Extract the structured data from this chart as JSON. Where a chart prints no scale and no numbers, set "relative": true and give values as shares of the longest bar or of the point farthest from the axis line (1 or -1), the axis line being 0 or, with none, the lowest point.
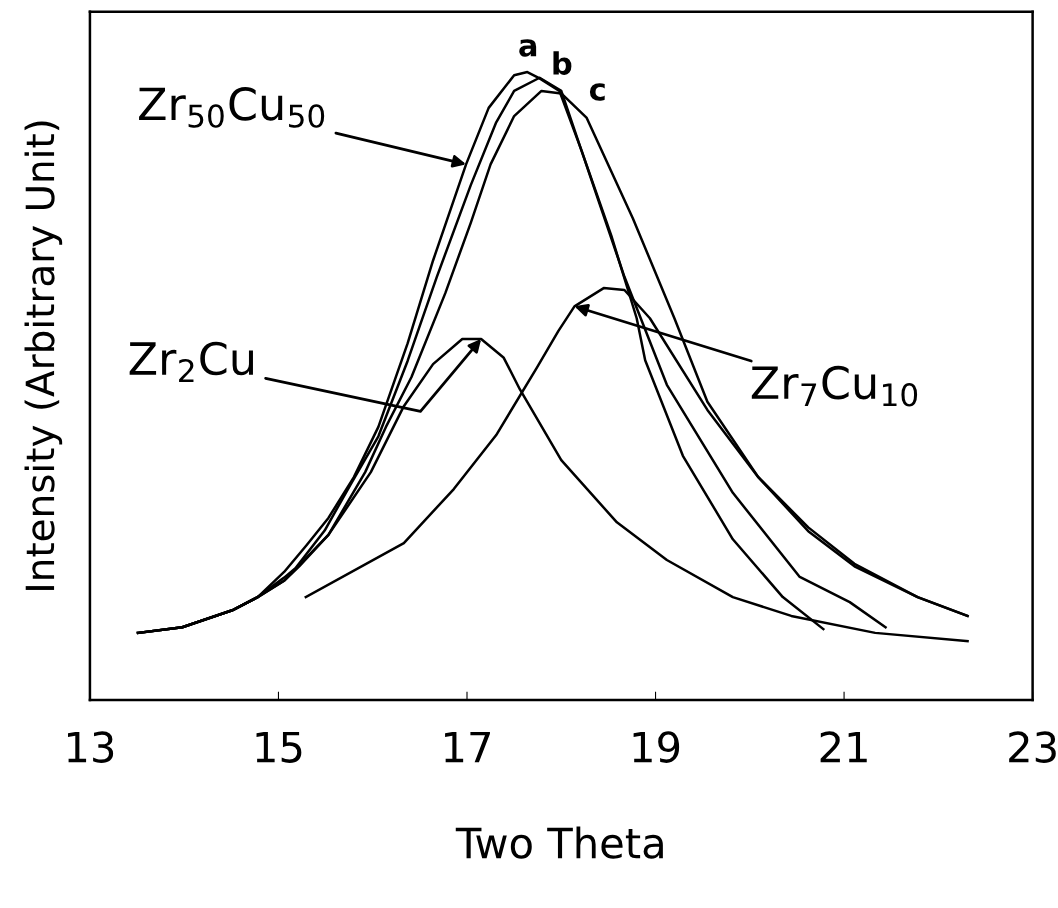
{
  "chart_data": {
    "type": "line",
    "relative": true,
    "xlabel": "Two Theta",
    "ylabel": "Intensity (Arbitrary Unit)",
    "xlim": [
      13,
      23
    ],
    "xticks": [
      13,
      15,
      17,
      19,
      21,
      23
    ],
    "tick_labels": "x",
    "grid": false,
    "legend": false,
    "line_style": "solid",
    "series": [
      {
        "name": "a",
        "color": "#000000",
        "x": [
          13.51,
          13.98,
          14.51,
          14.78,
          15.06,
          15.3,
          15.53,
          15.8,
          16.06,
          16.37,
          16.64,
          16.99,
          17.23,
          17.5,
          17.64,
          17.77,
          17.98,
          18.22,
          18.53,
          18.8,
          18.89,
          19.29,
          19.82,
          20.35,
          20.78
        ],
        "values": [
          0.107,
          0.116,
          0.143,
          0.164,
          0.204,
          0.247,
          0.29,
          0.355,
          0.435,
          0.568,
          0.7,
          0.853,
          0.943,
          0.995,
          1.0,
          0.99,
          0.97,
          0.873,
          0.74,
          0.608,
          0.541,
          0.389,
          0.256,
          0.164,
          0.113
        ]
      },
      {
        "name": "b",
        "color": "#000000",
        "x": [
          13.51,
          13.98,
          14.51,
          14.78,
          15.06,
          15.18,
          15.49,
          15.76,
          16.06,
          16.37,
          16.68,
          17.04,
          17.31,
          17.5,
          17.77,
          18.0,
          18.4,
          18.67,
          19.12,
          19.82,
          20.53,
          21.06,
          21.44
        ],
        "values": [
          0.107,
          0.116,
          0.143,
          0.164,
          0.195,
          0.21,
          0.27,
          0.342,
          0.42,
          0.54,
          0.674,
          0.82,
          0.92,
          0.97,
          0.991,
          0.97,
          0.793,
          0.674,
          0.502,
          0.33,
          0.196,
          0.156,
          0.116
        ]
      },
      {
        "name": "c",
        "color": "#000000",
        "x": [
          13.51,
          13.98,
          14.51,
          14.78,
          15.06,
          15.22,
          15.53,
          15.92,
          16.14,
          16.41,
          16.77,
          17.04,
          17.25,
          17.5,
          17.79,
          18.0,
          18.27,
          18.76,
          19.2,
          19.55,
          20.09,
          20.62,
          21.11,
          21.78,
          22.31
        ],
        "values": [
          0.107,
          0.116,
          0.143,
          0.164,
          0.19,
          0.213,
          0.263,
          0.363,
          0.435,
          0.514,
          0.648,
          0.76,
          0.853,
          0.93,
          0.97,
          0.966,
          0.927,
          0.767,
          0.608,
          0.475,
          0.355,
          0.275,
          0.217,
          0.164,
          0.134
        ]
      },
      {
        "color": "#000000",
        "x": [
          13.51,
          13.98,
          14.51,
          14.78,
          15.06,
          15.53,
          15.98,
          16.33,
          16.64,
          16.95,
          17.15,
          17.39,
          17.56,
          18.0,
          18.59,
          19.12,
          19.82,
          20.44,
          21.33,
          22.31
        ],
        "values": [
          0.107,
          0.116,
          0.143,
          0.164,
          0.19,
          0.263,
          0.363,
          0.468,
          0.535,
          0.575,
          0.575,
          0.545,
          0.495,
          0.382,
          0.283,
          0.223,
          0.164,
          0.134,
          0.107,
          0.094
        ]
      },
      {
        "color": "#000000",
        "x": [
          15.29,
          16.33,
          16.86,
          17.31,
          17.74,
          17.97,
          18.14,
          18.45,
          18.67,
          18.94,
          19.55,
          20.09,
          20.62,
          21.11,
          21.78,
          22.31
        ],
        "values": [
          0.164,
          0.25,
          0.336,
          0.422,
          0.529,
          0.588,
          0.627,
          0.656,
          0.653,
          0.608,
          0.462,
          0.355,
          0.269,
          0.213,
          0.164,
          0.134
        ]
      }
    ],
    "annotations": [
      {
        "text": "Zr$_{50}$Cu$_{50}$",
        "x": 16.99,
        "y": 0.853
      },
      {
        "text": "Zr$_{2}$Cu",
        "x": 17.15,
        "y": 0.575
      },
      {
        "text": "Zr$_{7}$Cu$_{10}$",
        "x": 18.14,
        "y": 0.627
      }
    ]
  }
}
